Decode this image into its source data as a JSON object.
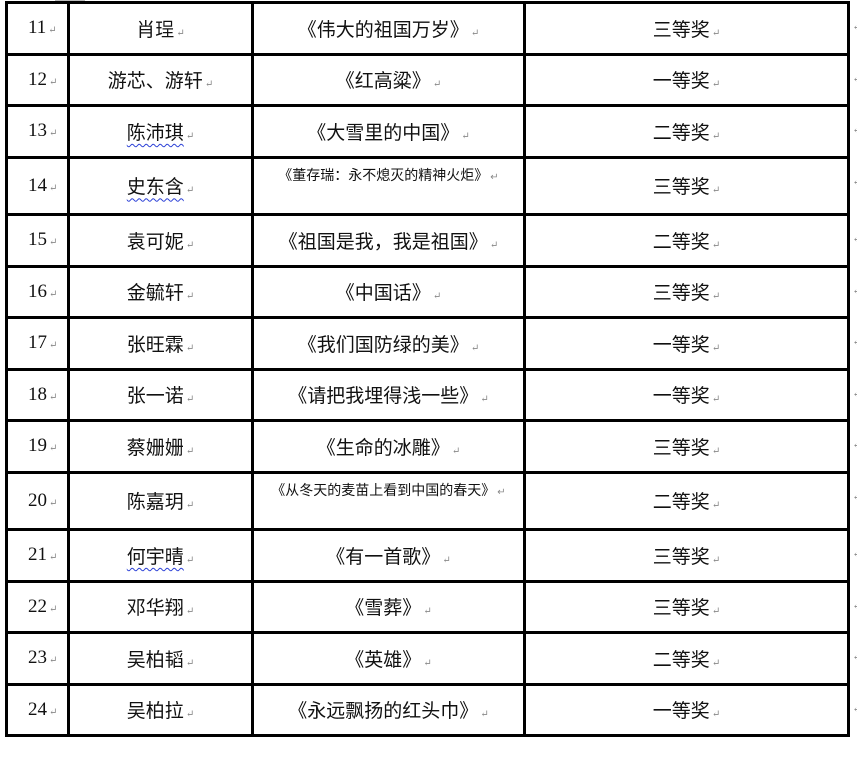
{
  "paragraph_mark": "↵",
  "rows": [
    {
      "no": "11",
      "name": "肖珵",
      "title": "《伟大的祖国万岁》",
      "award": "三等奖",
      "name_flagged": false,
      "title_small": false
    },
    {
      "no": "12",
      "name": "游芯、游轩",
      "title": "《红高粱》",
      "award": "一等奖",
      "name_flagged": false,
      "title_small": false
    },
    {
      "no": "13",
      "name": "陈沛琪",
      "title": "《大雪里的中国》",
      "award": "二等奖",
      "name_flagged": true,
      "title_small": false
    },
    {
      "no": "14",
      "name": "史东含",
      "title": "《董存瑞：永不熄灭的精神火炬》",
      "award": "三等奖",
      "name_flagged": true,
      "title_small": true
    },
    {
      "no": "15",
      "name": "袁可妮",
      "title": "《祖国是我，我是祖国》",
      "award": "二等奖",
      "name_flagged": false,
      "title_small": false
    },
    {
      "no": "16",
      "name": "金毓轩",
      "title": "《中国话》",
      "award": "三等奖",
      "name_flagged": false,
      "title_small": false
    },
    {
      "no": "17",
      "name": "张旺霖",
      "title": "《我们国防绿的美》",
      "award": "一等奖",
      "name_flagged": false,
      "title_small": false
    },
    {
      "no": "18",
      "name": "张一诺",
      "title": "《请把我埋得浅一些》",
      "award": "一等奖",
      "name_flagged": false,
      "title_small": false
    },
    {
      "no": "19",
      "name": "蔡姗姗",
      "title": "《生命的冰雕》",
      "award": "三等奖",
      "name_flagged": false,
      "title_small": false
    },
    {
      "no": "20",
      "name": "陈嘉玥",
      "title": "《从冬天的麦苗上看到中国的春天》",
      "award": "二等奖",
      "name_flagged": false,
      "title_small": true
    },
    {
      "no": "21",
      "name": "何宇晴",
      "title": "《有一首歌》",
      "award": "三等奖",
      "name_flagged": true,
      "title_small": false
    },
    {
      "no": "22",
      "name": "邓华翔",
      "title": "《雪葬》",
      "award": "三等奖",
      "name_flagged": false,
      "title_small": false
    },
    {
      "no": "23",
      "name": "吴柏韬",
      "title": "《英雄》",
      "award": "二等奖",
      "name_flagged": false,
      "title_small": false
    },
    {
      "no": "24",
      "name": "吴柏拉",
      "title": "《永远飘扬的红头巾》",
      "award": "一等奖",
      "name_flagged": false,
      "title_small": false
    }
  ]
}
